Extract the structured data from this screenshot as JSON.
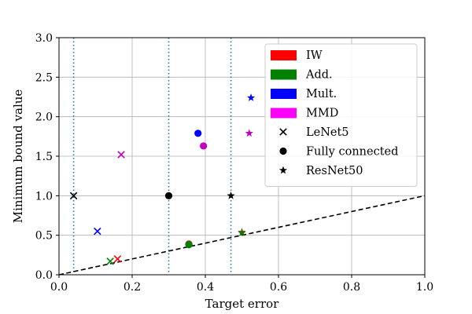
{
  "chart_data": {
    "type": "scatter",
    "xlabel": "Target error",
    "ylabel": "Minimum bound value",
    "xlim": [
      0.0,
      1.0
    ],
    "ylim": [
      0.0,
      3.0
    ],
    "x_ticks": [
      "0.0",
      "0.2",
      "0.4",
      "0.6",
      "0.8",
      "1.0"
    ],
    "y_ticks": [
      "0.0",
      "0.5",
      "1.0",
      "1.5",
      "2.0",
      "2.5",
      "3.0"
    ],
    "grid": true,
    "legend_position": "top-right",
    "reference_line": {
      "style": "dashed",
      "color": "#000000",
      "from": [
        0.0,
        0.0
      ],
      "to": [
        1.0,
        1.0
      ]
    },
    "vertical_lines": {
      "style": "dotted",
      "color": "#1f77b4",
      "x": [
        0.04,
        0.3,
        0.47
      ]
    },
    "color_legend": [
      {
        "name": "IW",
        "color": "#ff0000"
      },
      {
        "name": "Add.",
        "color": "#008000"
      },
      {
        "name": "Mult.",
        "color": "#0000ff"
      },
      {
        "name": "MMD",
        "color": "#ff00ff"
      }
    ],
    "marker_legend": [
      {
        "name": "LeNet5",
        "marker": "x"
      },
      {
        "name": "Fully connected",
        "marker": "circle"
      },
      {
        "name": "ResNet50",
        "marker": "star"
      }
    ],
    "points": [
      {
        "model": "LeNet5",
        "method": "none",
        "marker": "x",
        "color": "#000000",
        "x": 0.04,
        "y": 1.0
      },
      {
        "model": "LeNet5",
        "method": "IW",
        "marker": "x",
        "color": "#ff0000",
        "x": 0.16,
        "y": 0.2
      },
      {
        "model": "LeNet5",
        "method": "Add.",
        "marker": "x",
        "color": "#008000",
        "x": 0.14,
        "y": 0.17
      },
      {
        "model": "LeNet5",
        "method": "Mult.",
        "marker": "x",
        "color": "#0000ff",
        "x": 0.105,
        "y": 0.55
      },
      {
        "model": "LeNet5",
        "method": "MMD",
        "marker": "x",
        "color": "#bf00bf",
        "x": 0.17,
        "y": 1.52
      },
      {
        "model": "Fully connected",
        "method": "none",
        "marker": "circle",
        "color": "#000000",
        "x": 0.3,
        "y": 1.0
      },
      {
        "model": "Fully connected",
        "method": "IW",
        "marker": "circle",
        "color": "#d62728",
        "x": 0.355,
        "y": 0.39
      },
      {
        "model": "Fully connected",
        "method": "Add.",
        "marker": "circle",
        "color": "#008000",
        "x": 0.355,
        "y": 0.38
      },
      {
        "model": "Fully connected",
        "method": "Mult.",
        "marker": "circle",
        "color": "#0000ff",
        "x": 0.38,
        "y": 1.79
      },
      {
        "model": "Fully connected",
        "method": "MMD",
        "marker": "circle",
        "color": "#bf00bf",
        "x": 0.395,
        "y": 1.63
      },
      {
        "model": "ResNet50",
        "method": "none",
        "marker": "star",
        "color": "#000000",
        "x": 0.47,
        "y": 1.0
      },
      {
        "model": "ResNet50",
        "method": "IW",
        "marker": "star",
        "color": "#d62728",
        "x": 0.5,
        "y": 0.54
      },
      {
        "model": "ResNet50",
        "method": "Add.",
        "marker": "star",
        "color": "#008000",
        "x": 0.5,
        "y": 0.53
      },
      {
        "model": "ResNet50",
        "method": "Mult.",
        "marker": "star",
        "color": "#0000ff",
        "x": 0.525,
        "y": 2.24
      },
      {
        "model": "ResNet50",
        "method": "MMD",
        "marker": "star",
        "color": "#bf00bf",
        "x": 0.52,
        "y": 1.79
      }
    ]
  }
}
